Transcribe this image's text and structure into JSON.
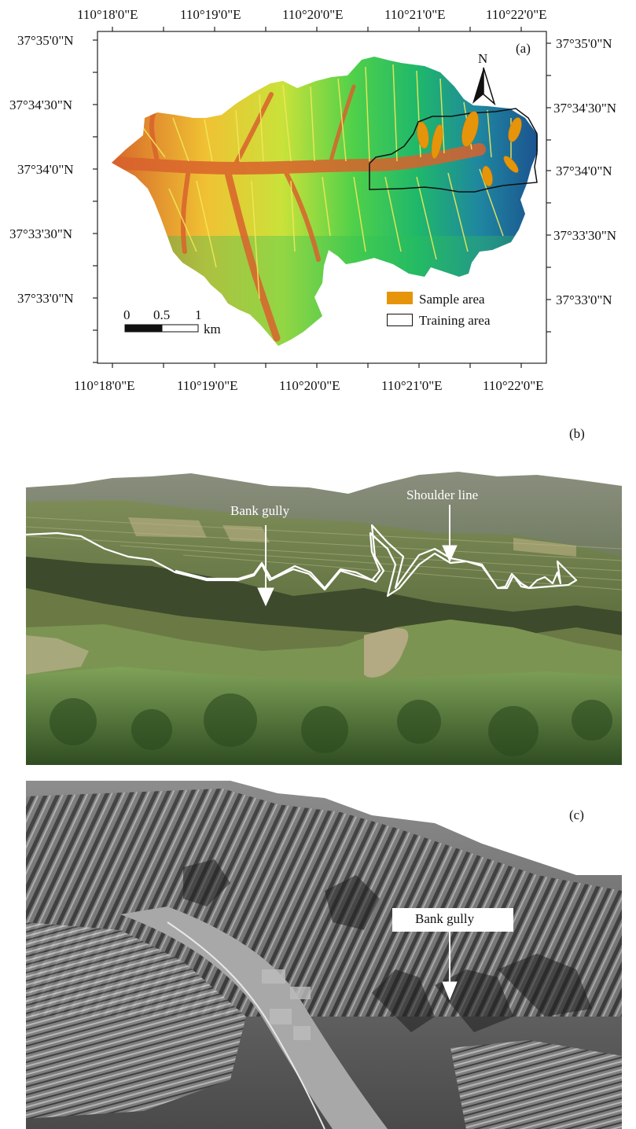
{
  "panel_a": {
    "label": "(a)",
    "top_lon_labels": [
      "110°18'0\"E",
      "110°19'0\"E",
      "110°20'0\"E",
      "110°21'0\"E",
      "110°22'0\"E"
    ],
    "bottom_lon_labels": [
      "110°18'0\"E",
      "110°19'0\"E",
      "110°20'0\"E",
      "110°21'0\"E",
      "110°22'0\"E"
    ],
    "left_lat_labels": [
      "37°35'0\"N",
      "37°34'30\"N",
      "37°34'0\"N",
      "37°33'30\"N",
      "37°33'0\"N"
    ],
    "right_lat_labels": [
      "37°35'0\"N",
      "37°34'30\"N",
      "37°34'0\"N",
      "37°33'30\"N",
      "37°33'0\"N"
    ],
    "north_label": "N",
    "scale": {
      "ticks": [
        "0",
        "0.5",
        "1"
      ],
      "unit": "km"
    },
    "legend": [
      {
        "label": "Sample area",
        "color": "#E6950B"
      },
      {
        "label": "Training area",
        "color": "#ffffff"
      }
    ]
  },
  "panel_b": {
    "label": "(b)",
    "callouts": [
      "Bank gully",
      "Shoulder line"
    ],
    "line_color": "#ffffff"
  },
  "panel_c": {
    "label": "(c)",
    "callouts": [
      "Bank gully"
    ]
  }
}
